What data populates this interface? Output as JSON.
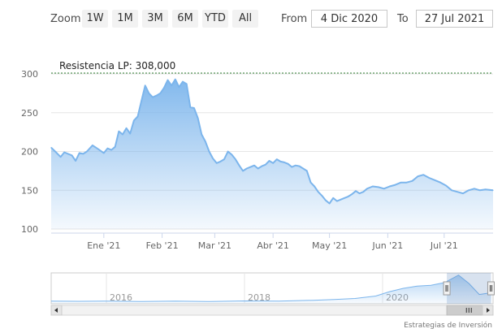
{
  "rangeSelector": {
    "zoom_label": "Zoom",
    "buttons": [
      "1W",
      "1M",
      "3M",
      "6M",
      "YTD",
      "All"
    ],
    "from_label": "From",
    "from_value": "4 Dic 2020",
    "to_label": "To",
    "to_value": "27 Jul 2021"
  },
  "chart_data": {
    "type": "area",
    "title": "",
    "xlabel": "",
    "ylabel": "",
    "xlim": [
      "2020-12-04",
      "2021-07-27"
    ],
    "ylim": [
      100,
      300
    ],
    "yticks": [
      100,
      150,
      200,
      250,
      300
    ],
    "yticklabels": [
      "100",
      "150",
      "200",
      "250",
      "300"
    ],
    "xticks": [
      "2021-01-01",
      "2021-02-01",
      "2021-03-01",
      "2021-04-01",
      "2021-05-01",
      "2021-06-01",
      "2021-07-01"
    ],
    "xticklabels": [
      "Ene '21",
      "Feb '21",
      "Mar '21",
      "Abr '21",
      "May '21",
      "Jun '21",
      "Jul '21"
    ],
    "grid": true,
    "plot_line": {
      "value": 300,
      "label": "Resistencia LP: 308,000"
    },
    "series": [
      {
        "x": [
          "2020-12-04",
          "2020-12-07",
          "2020-12-09",
          "2020-12-11",
          "2020-12-13",
          "2020-12-15",
          "2020-12-17",
          "2020-12-19",
          "2020-12-21",
          "2020-12-23",
          "2020-12-26",
          "2020-12-29",
          "2021-01-01",
          "2021-01-03",
          "2021-01-05",
          "2021-01-07",
          "2021-01-09",
          "2021-01-11",
          "2021-01-13",
          "2021-01-15",
          "2021-01-17",
          "2021-01-19",
          "2021-01-21",
          "2021-01-23",
          "2021-01-25",
          "2021-01-27",
          "2021-01-29",
          "2021-01-31",
          "2021-02-02",
          "2021-02-04",
          "2021-02-06",
          "2021-02-08",
          "2021-02-10",
          "2021-02-12",
          "2021-02-14",
          "2021-02-16",
          "2021-02-18",
          "2021-02-20",
          "2021-02-22",
          "2021-02-24",
          "2021-02-26",
          "2021-02-28",
          "2021-03-02",
          "2021-03-04",
          "2021-03-06",
          "2021-03-08",
          "2021-03-10",
          "2021-03-12",
          "2021-03-14",
          "2021-03-16",
          "2021-03-18",
          "2021-03-20",
          "2021-03-22",
          "2021-03-24",
          "2021-03-26",
          "2021-03-28",
          "2021-03-30",
          "2021-04-01",
          "2021-04-03",
          "2021-04-05",
          "2021-04-07",
          "2021-04-09",
          "2021-04-11",
          "2021-04-13",
          "2021-04-15",
          "2021-04-17",
          "2021-04-19",
          "2021-04-21",
          "2021-04-23",
          "2021-04-25",
          "2021-04-27",
          "2021-04-29",
          "2021-05-01",
          "2021-05-03",
          "2021-05-05",
          "2021-05-07",
          "2021-05-09",
          "2021-05-11",
          "2021-05-13",
          "2021-05-15",
          "2021-05-17",
          "2021-05-19",
          "2021-05-21",
          "2021-05-24",
          "2021-05-27",
          "2021-05-30",
          "2021-06-02",
          "2021-06-05",
          "2021-06-08",
          "2021-06-11",
          "2021-06-14",
          "2021-06-17",
          "2021-06-20",
          "2021-06-23",
          "2021-06-26",
          "2021-06-29",
          "2021-07-02",
          "2021-07-05",
          "2021-07-08",
          "2021-07-11",
          "2021-07-14",
          "2021-07-17",
          "2021-07-20",
          "2021-07-23",
          "2021-07-27"
        ],
        "values": [
          205,
          198,
          193,
          199,
          197,
          195,
          188,
          198,
          197,
          200,
          208,
          203,
          198,
          204,
          202,
          206,
          226,
          222,
          230,
          223,
          240,
          245,
          265,
          285,
          275,
          270,
          272,
          275,
          282,
          292,
          285,
          293,
          283,
          290,
          287,
          257,
          256,
          243,
          222,
          213,
          200,
          191,
          185,
          187,
          190,
          200,
          196,
          190,
          182,
          175,
          178,
          180,
          182,
          178,
          181,
          183,
          188,
          185,
          190,
          187,
          186,
          184,
          180,
          182,
          181,
          178,
          175,
          160,
          155,
          148,
          143,
          137,
          133,
          140,
          136,
          138,
          140,
          142,
          145,
          149,
          146,
          148,
          152,
          155,
          154,
          152,
          155,
          157,
          160,
          160,
          162,
          168,
          170,
          166,
          163,
          160,
          156,
          150,
          148,
          146,
          150,
          152,
          150,
          151,
          150
        ]
      }
    ]
  },
  "navigator": {
    "year_labels": [
      "2016",
      "2018",
      "2020"
    ],
    "xlim": [
      2015.2,
      2021.6
    ],
    "selected_range": [
      2020.93,
      2021.57
    ],
    "series": {
      "x": [
        2015.2,
        2015.6,
        2016.0,
        2016.5,
        2017.0,
        2017.5,
        2018.0,
        2018.5,
        2019.0,
        2019.3,
        2019.6,
        2019.9,
        2020.1,
        2020.3,
        2020.5,
        2020.7,
        2020.9,
        2021.1,
        2021.25,
        2021.4,
        2021.58
      ],
      "values": [
        112,
        111,
        112,
        110,
        112,
        110,
        113,
        112,
        116,
        119,
        124,
        135,
        155,
        170,
        180,
        184,
        196,
        230,
        192,
        142,
        150
      ]
    }
  },
  "credit": "Estrategias de Inversión"
}
